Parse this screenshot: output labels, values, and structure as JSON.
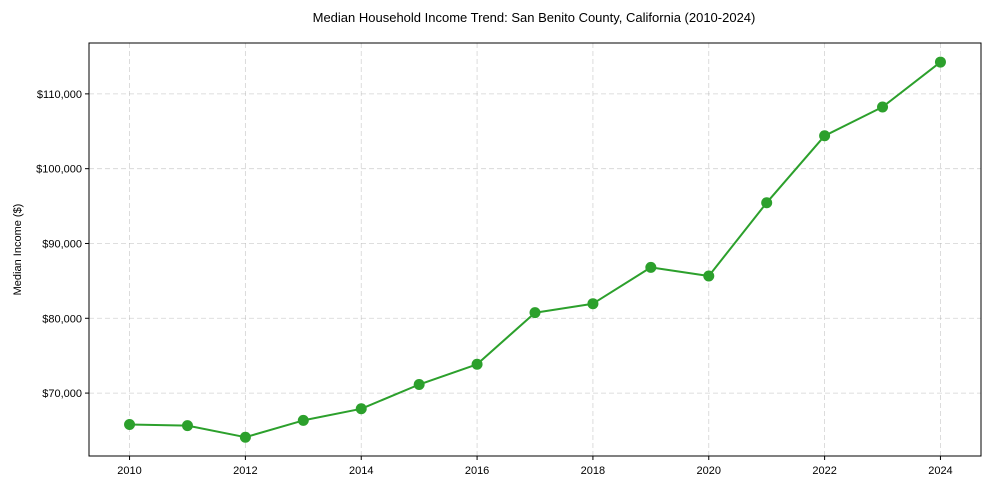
{
  "chart_data": {
    "type": "line",
    "title": "Median Household Income Trend: San Benito County, California (2010-2024)",
    "xlabel": "",
    "ylabel": "Median Income ($)",
    "x": [
      2010,
      2011,
      2012,
      2013,
      2014,
      2015,
      2016,
      2017,
      2018,
      2019,
      2020,
      2021,
      2022,
      2023,
      2024
    ],
    "series": [
      {
        "name": "Median Household Income",
        "color": "#2ca02c",
        "marker": "circle",
        "values": [
          65800,
          65650,
          64100,
          66350,
          67900,
          71150,
          73850,
          80750,
          81950,
          86800,
          85650,
          95450,
          104400,
          108250,
          114250
        ]
      }
    ],
    "xticks": [
      2010,
      2012,
      2014,
      2016,
      2018,
      2020,
      2022,
      2024
    ],
    "yticks": [
      70000,
      80000,
      90000,
      100000,
      110000
    ],
    "ytick_labels": [
      "$70,000",
      "$80,000",
      "$90,000",
      "$100,000",
      "$110,000"
    ],
    "xlim": [
      2009.3,
      2024.7
    ],
    "ylim": [
      61590,
      116800
    ],
    "grid": true,
    "legend": null
  }
}
